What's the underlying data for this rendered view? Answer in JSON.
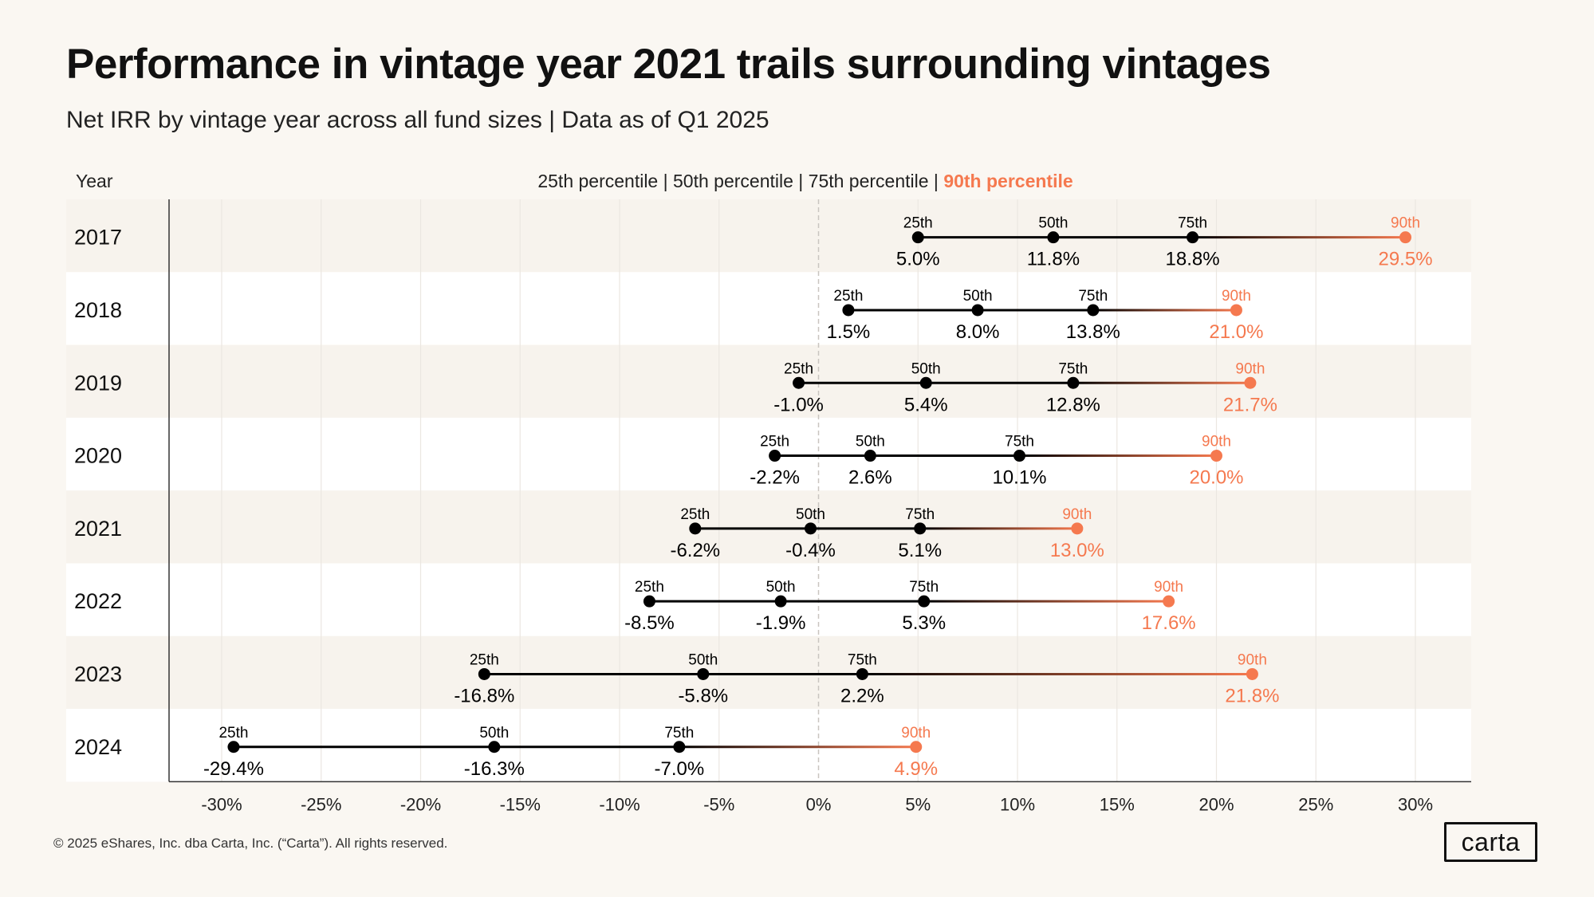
{
  "title": "Performance in vintage year 2021 trails surrounding vintages",
  "subtitle": "Net IRR by vintage year across all fund sizes | Data as of Q1 2025",
  "footer": "© 2025 eShares, Inc. dba Carta, Inc. (“Carta”). All rights reserved.",
  "logo": "carta",
  "colors": {
    "background": "#faf7f2",
    "row_alt": "#f7f3ed",
    "row_plain": "#ffffff",
    "accent": "#f5794f",
    "marker": "#000000"
  },
  "chart_data": {
    "type": "dumbbell",
    "title": "Performance in vintage year 2021 trails surrounding vintages",
    "ylabel": "Year",
    "legend": {
      "items": [
        "25th percentile",
        "50th percentile",
        "75th percentile",
        "90th percentile"
      ],
      "separator": "|",
      "highlight": "90th percentile",
      "placement": "top-center"
    },
    "percentile_labels": [
      "25th",
      "50th",
      "75th",
      "90th"
    ],
    "xlim": [
      -32,
      33
    ],
    "xticks": [
      -30,
      -25,
      -20,
      -15,
      -10,
      -5,
      0,
      5,
      10,
      15,
      20,
      25,
      30
    ],
    "xtick_labels": [
      "-30%",
      "-25%",
      "-20%",
      "-15%",
      "-10%",
      "-5%",
      "0%",
      "5%",
      "10%",
      "15%",
      "20%",
      "25%",
      "30%"
    ],
    "grid": "vertical",
    "categories": [
      "2017",
      "2018",
      "2019",
      "2020",
      "2021",
      "2022",
      "2023",
      "2024"
    ],
    "series": [
      {
        "name": "25th percentile",
        "values": [
          5.0,
          1.5,
          -1.0,
          -2.2,
          -6.2,
          -8.5,
          -16.8,
          -29.4
        ],
        "labels": [
          "5.0%",
          "1.5%",
          "-1.0%",
          "-2.2%",
          "-6.2%",
          "-8.5%",
          "-16.8%",
          "-29.4%"
        ]
      },
      {
        "name": "50th percentile",
        "values": [
          11.8,
          8.0,
          5.4,
          2.6,
          -0.4,
          -1.9,
          -5.8,
          -16.3
        ],
        "labels": [
          "11.8%",
          "8.0%",
          "5.4%",
          "2.6%",
          "-0.4%",
          "-1.9%",
          "-5.8%",
          "-16.3%"
        ]
      },
      {
        "name": "75th percentile",
        "values": [
          18.8,
          13.8,
          12.8,
          10.1,
          5.1,
          5.3,
          2.2,
          -7.0
        ],
        "labels": [
          "18.8%",
          "13.8%",
          "12.8%",
          "10.1%",
          "5.1%",
          "5.3%",
          "2.2%",
          "-7.0%"
        ]
      },
      {
        "name": "90th percentile",
        "values": [
          29.5,
          21.0,
          21.7,
          20.0,
          13.0,
          17.6,
          21.8,
          4.9
        ],
        "labels": [
          "29.5%",
          "21.0%",
          "21.7%",
          "20.0%",
          "13.0%",
          "17.6%",
          "21.8%",
          "4.9%"
        ]
      }
    ]
  }
}
